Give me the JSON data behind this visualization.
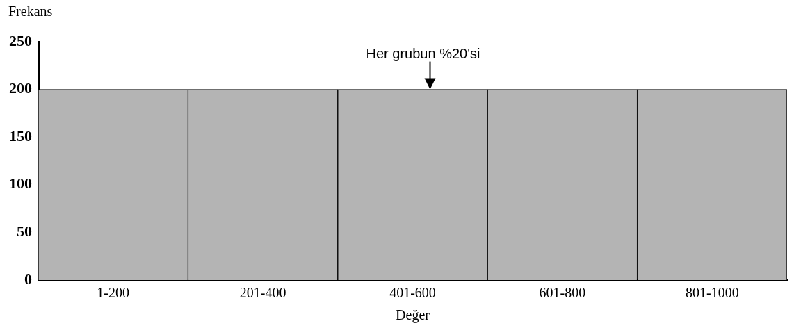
{
  "chart_data": {
    "type": "bar",
    "xlabel": "Değer",
    "ylabel": "Frekans",
    "categories": [
      "1-200",
      "201-400",
      "401-600",
      "601-800",
      "801-1000"
    ],
    "values": [
      200,
      200,
      200,
      200,
      200
    ],
    "color": "#b4b4b4",
    "ylim": [
      0,
      250
    ],
    "yticks": [
      0,
      50,
      100,
      150,
      200,
      250
    ],
    "grid": false,
    "legend": false,
    "annotations": [
      {
        "text": "Her grubun %20'si",
        "x": "401-600",
        "y": 200
      }
    ]
  }
}
